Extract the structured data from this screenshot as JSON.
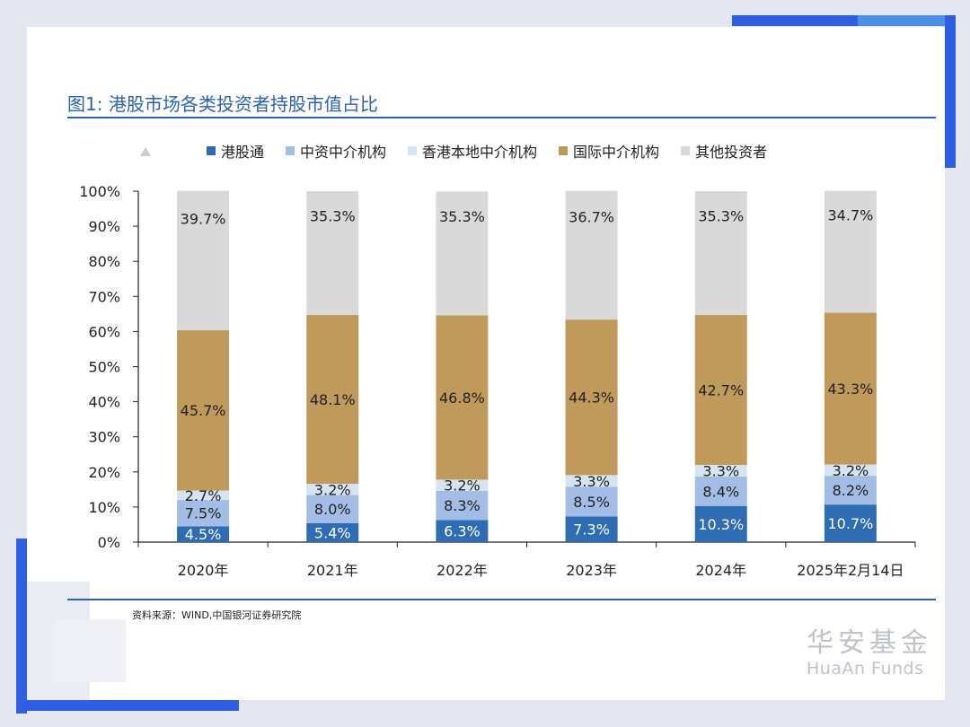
{
  "title": "图1: 港股市场各类投资者持股市值占比",
  "source": "资料来源：WIND,中国银河证券研究院",
  "logo": {
    "cn": "华安基金",
    "en": "HuaAn Funds"
  },
  "colors": {
    "gangutong": "#2e6db4",
    "zhongzi": "#a3bde6",
    "xianggang": "#d6e3f1",
    "guoji": "#c09a5b",
    "qita": "#d9d9d9",
    "accent": "#2a62b0"
  },
  "chart_data": {
    "type": "bar",
    "stacked": true,
    "categories": [
      "2020年",
      "2021年",
      "2022年",
      "2023年",
      "2024年",
      "2025年2月14日"
    ],
    "series": [
      {
        "name": "港股通",
        "values": [
          4.5,
          5.4,
          6.3,
          7.3,
          10.3,
          10.7
        ],
        "labels": [
          "4.5%",
          "5.4%",
          "6.3%",
          "7.3%",
          "10.3%",
          "10.7%"
        ]
      },
      {
        "name": "中资中介机构",
        "values": [
          7.5,
          8.0,
          8.3,
          8.5,
          8.4,
          8.2
        ],
        "labels": [
          "7.5%",
          "8.0%",
          "8.3%",
          "8.5%",
          "8.4%",
          "8.2%"
        ]
      },
      {
        "name": "香港本地中介机构",
        "values": [
          2.7,
          3.2,
          3.2,
          3.3,
          3.3,
          3.2
        ],
        "labels": [
          "2.7%",
          "3.2%",
          "3.2%",
          "3.3%",
          "3.3%",
          "3.2%"
        ]
      },
      {
        "name": "国际中介机构",
        "values": [
          45.7,
          48.1,
          46.8,
          44.3,
          42.7,
          43.3
        ],
        "labels": [
          "45.7%",
          "48.1%",
          "46.8%",
          "44.3%",
          "42.7%",
          "43.3%"
        ]
      },
      {
        "name": "其他投资者",
        "values": [
          39.7,
          35.3,
          35.3,
          36.7,
          35.3,
          34.7
        ],
        "labels": [
          "39.7%",
          "35.3%",
          "35.3%",
          "36.7%",
          "35.3%",
          "34.7%"
        ]
      }
    ],
    "ylim": [
      0,
      100
    ],
    "yticks": [
      "0%",
      "10%",
      "20%",
      "30%",
      "40%",
      "50%",
      "60%",
      "70%",
      "80%",
      "90%",
      "100%"
    ],
    "legend": "top",
    "grid": false
  }
}
